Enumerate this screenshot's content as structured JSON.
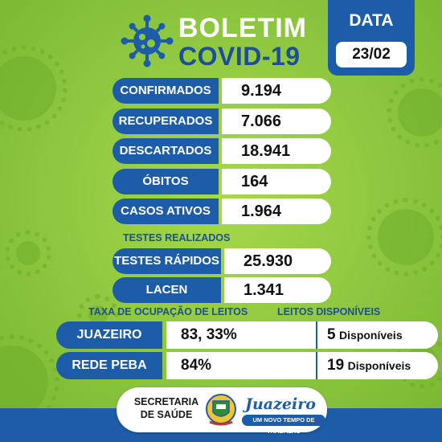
{
  "header": {
    "title_line1": "BOLETIM",
    "title_line2": "COVID-19",
    "icon": "virus-icon"
  },
  "date": {
    "label": "DATA",
    "value": "23/02"
  },
  "stats": [
    {
      "label": "CONFIRMADOS",
      "value": "9.194"
    },
    {
      "label": "RECUPERADOS",
      "value": "7.066"
    },
    {
      "label": "DESCARTADOS",
      "value": "18.941"
    },
    {
      "label": "ÓBITOS",
      "value": "164"
    },
    {
      "label": "CASOS ATIVOS",
      "value": "1.964"
    }
  ],
  "testes": {
    "heading": "TESTES REALIZADOS",
    "rows": [
      {
        "label": "TESTES RÁPIDOS",
        "value": "25.930"
      },
      {
        "label": "LACEN",
        "value": "1.341"
      }
    ]
  },
  "leitos": {
    "heading_ocupacao": "TAXA DE OCUPAÇÃO DE LEITOS",
    "heading_disponiveis": "LEITOS DISPONÍVEIS",
    "rows": [
      {
        "label": "JUAZEIRO",
        "ocupacao": "83, 33%",
        "disponiveis": "5",
        "disponiveis_word": "Disponíveis"
      },
      {
        "label": "REDE PEBA",
        "ocupacao": "84%",
        "disponiveis": "19",
        "disponiveis_word": "Disponíveis"
      }
    ]
  },
  "footer": {
    "secretaria_line1": "SECRETARIA",
    "secretaria_line2": "DE SAÚDE",
    "city_name": "Juazeiro",
    "slogan": "UM NOVO TEMPO DE TRABALHO",
    "crest_icon": "city-crest-icon"
  },
  "colors": {
    "background": "#8cc63f",
    "brand_blue": "#1d5ca8",
    "title_white": "#ffffff",
    "dark_blue_text": "#1d4f98"
  }
}
